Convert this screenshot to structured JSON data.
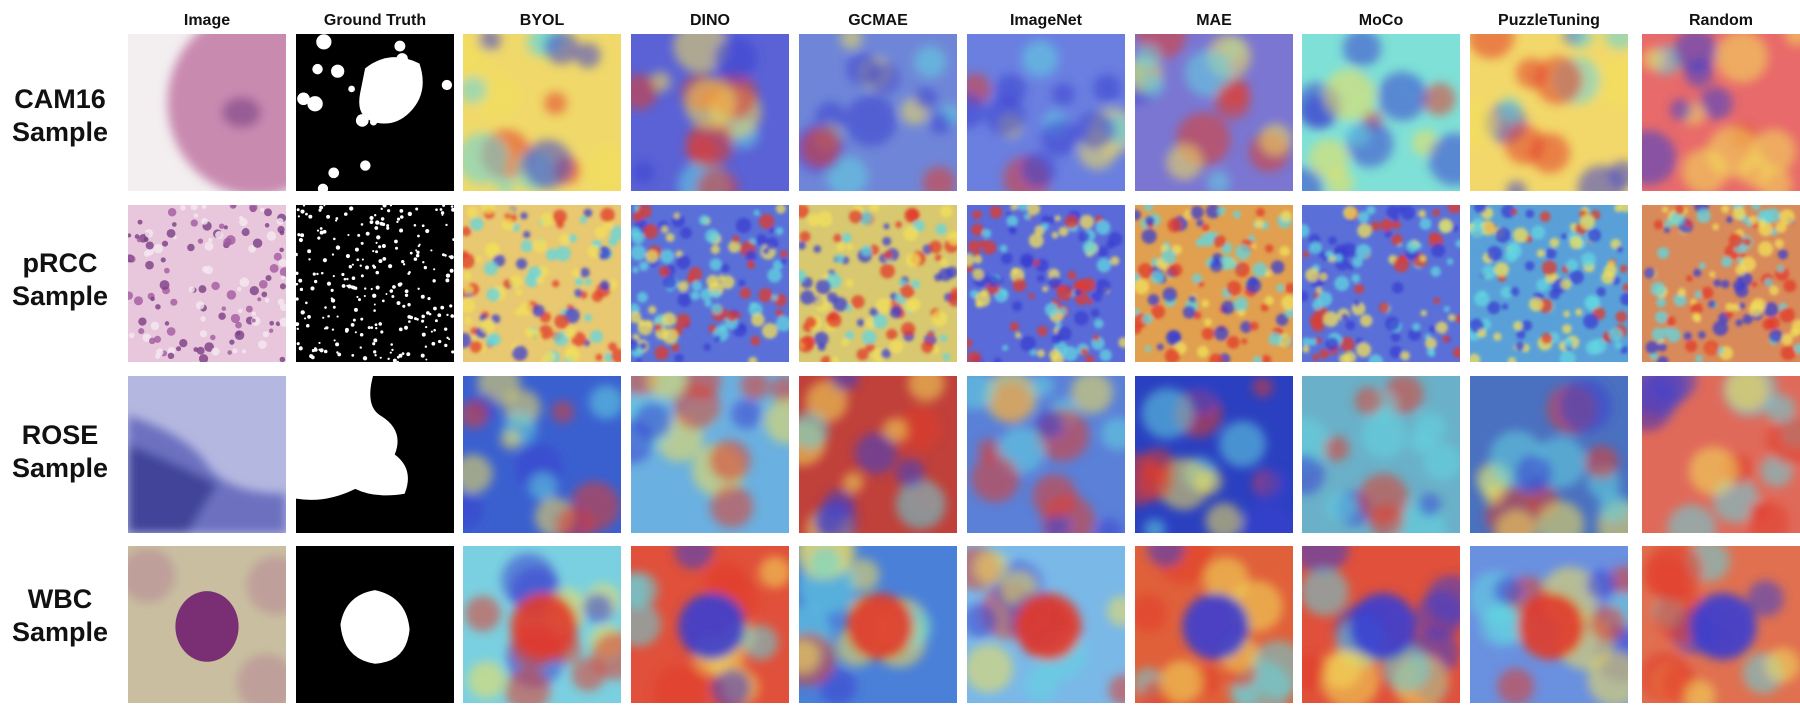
{
  "columns": [
    "Image",
    "Ground Truth",
    "BYOL",
    "DINO",
    "GCMAE",
    "ImageNet",
    "MAE",
    "MoCo",
    "PuzzleTuning",
    "Random"
  ],
  "rows": [
    {
      "line1": "CAM16",
      "line2": "Sample"
    },
    {
      "line1": "pRCC",
      "line2": "Sample"
    },
    {
      "line1": "ROSE",
      "line2": "Sample"
    },
    {
      "line1": "WBC",
      "line2": "Sample"
    }
  ],
  "palette": {
    "jet_blue": "#3a3fd0",
    "jet_cyan": "#62d6e0",
    "jet_yellow": "#f2e05a",
    "jet_red": "#e23a2a",
    "he_pink": "#c98ab0",
    "he_purple": "#7a3f86",
    "rose_blue": "#5a5fb8",
    "wbc_bg": "#c9bfa0"
  }
}
